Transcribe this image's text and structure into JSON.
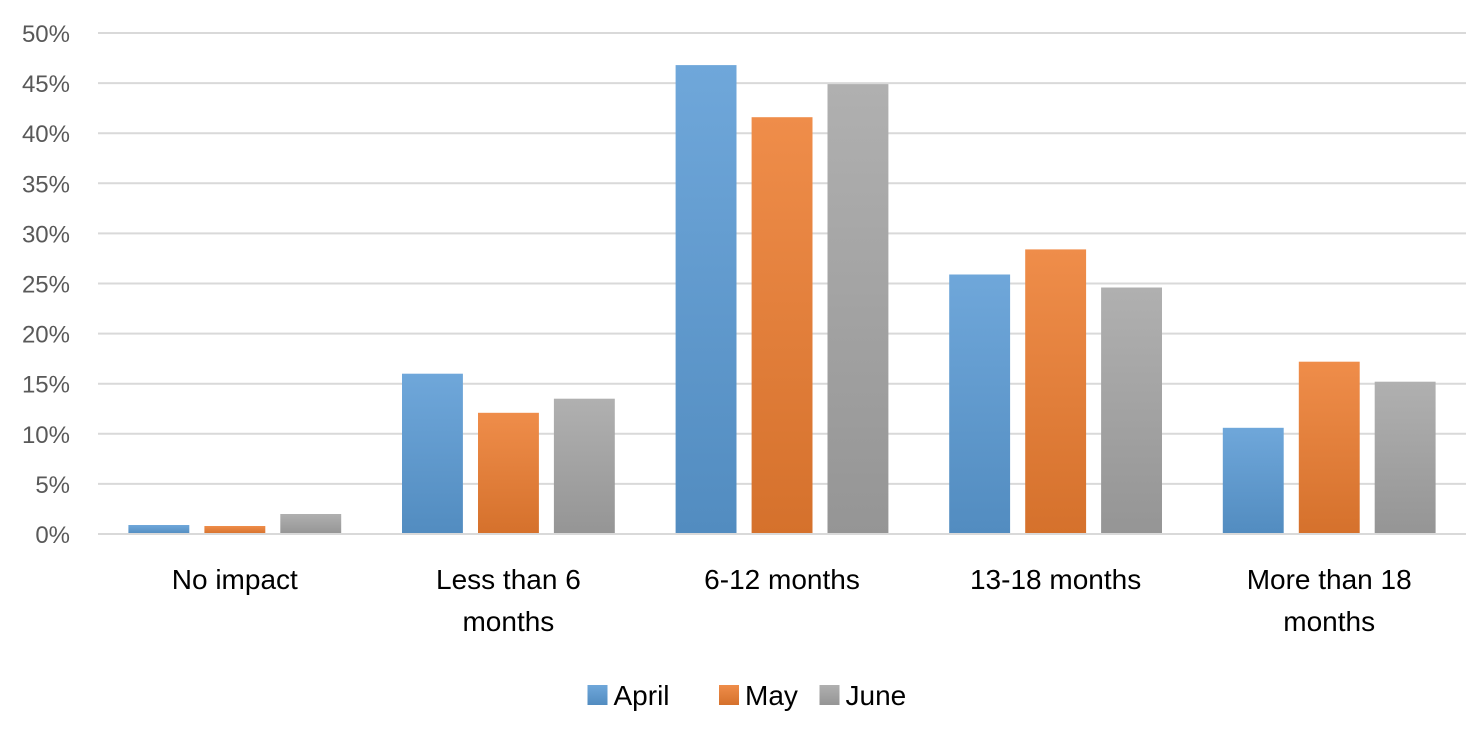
{
  "chart_data": {
    "type": "bar",
    "title": "",
    "xlabel": "",
    "ylabel": "",
    "categories": [
      [
        "No impact"
      ],
      [
        "Less than 6",
        "months"
      ],
      [
        "6-12 months"
      ],
      [
        "13-18 months"
      ],
      [
        "More than 18",
        "months"
      ]
    ],
    "series": [
      {
        "name": "April",
        "values": [
          0.9,
          16.0,
          46.8,
          25.9,
          10.6
        ],
        "color": "#5B9BD5"
      },
      {
        "name": "May",
        "values": [
          0.8,
          12.1,
          41.6,
          28.4,
          17.2
        ],
        "color": "#ED7D31"
      },
      {
        "name": "June",
        "values": [
          2.0,
          13.5,
          44.9,
          24.6,
          15.2
        ],
        "color": "#A5A5A5"
      }
    ],
    "ylim": [
      0,
      50
    ],
    "ytick_step": 5,
    "y_tick_format": "percent",
    "grid": true,
    "legend_position": "bottom"
  }
}
